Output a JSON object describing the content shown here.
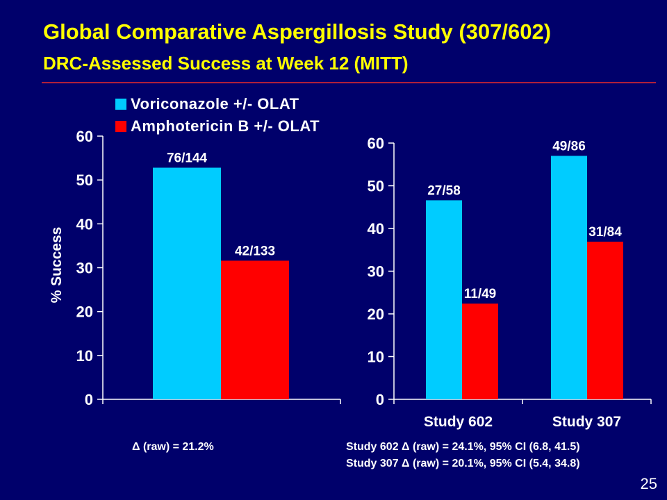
{
  "slide": {
    "title": "Global Comparative Aspergillosis Study (307/602)",
    "subtitle": "DRC-Assessed Success at Week 12 (MITT)",
    "page_number": "25",
    "colors": {
      "background": "#00006b",
      "title": "#ffff00",
      "rule": "#b0203a"
    }
  },
  "legend": {
    "items": [
      {
        "label": "Voriconazole +/- OLAT",
        "color": "#00ccff"
      },
      {
        "label": "Amphotericin B +/- OLAT",
        "color": "#ff0000"
      }
    ]
  },
  "notes": {
    "left": "Δ  (raw) = 21.2%",
    "right_line1": "Study 602 Δ (raw) = 24.1%, 95% CI (6.8, 41.5)",
    "right_line2": "Study 307 Δ (raw) = 20.1%, 95% CI (5.4, 34.8)"
  },
  "chart_data": [
    {
      "type": "bar",
      "categories": [
        ""
      ],
      "series": [
        {
          "name": "Voriconazole +/- OLAT",
          "color": "#00ccff",
          "values": [
            52.8
          ],
          "labels": [
            "76/144"
          ]
        },
        {
          "name": "Amphotericin B +/- OLAT",
          "color": "#ff0000",
          "values": [
            31.6
          ],
          "labels": [
            "42/133"
          ]
        }
      ],
      "ylabel": "% Success",
      "ylim": [
        0,
        60
      ],
      "yticks": [
        0,
        10,
        20,
        30,
        40,
        50,
        60
      ]
    },
    {
      "type": "bar",
      "categories": [
        "Study 602",
        "Study 307"
      ],
      "series": [
        {
          "name": "Voriconazole +/- OLAT",
          "color": "#00ccff",
          "values": [
            46.6,
            57.0
          ],
          "labels": [
            "27/58",
            "49/86"
          ]
        },
        {
          "name": "Amphotericin B +/- OLAT",
          "color": "#ff0000",
          "values": [
            22.4,
            36.9
          ],
          "labels": [
            "11/49",
            "31/84"
          ]
        }
      ],
      "ylim": [
        0,
        60
      ],
      "yticks": [
        0,
        10,
        20,
        30,
        40,
        50,
        60
      ]
    }
  ]
}
